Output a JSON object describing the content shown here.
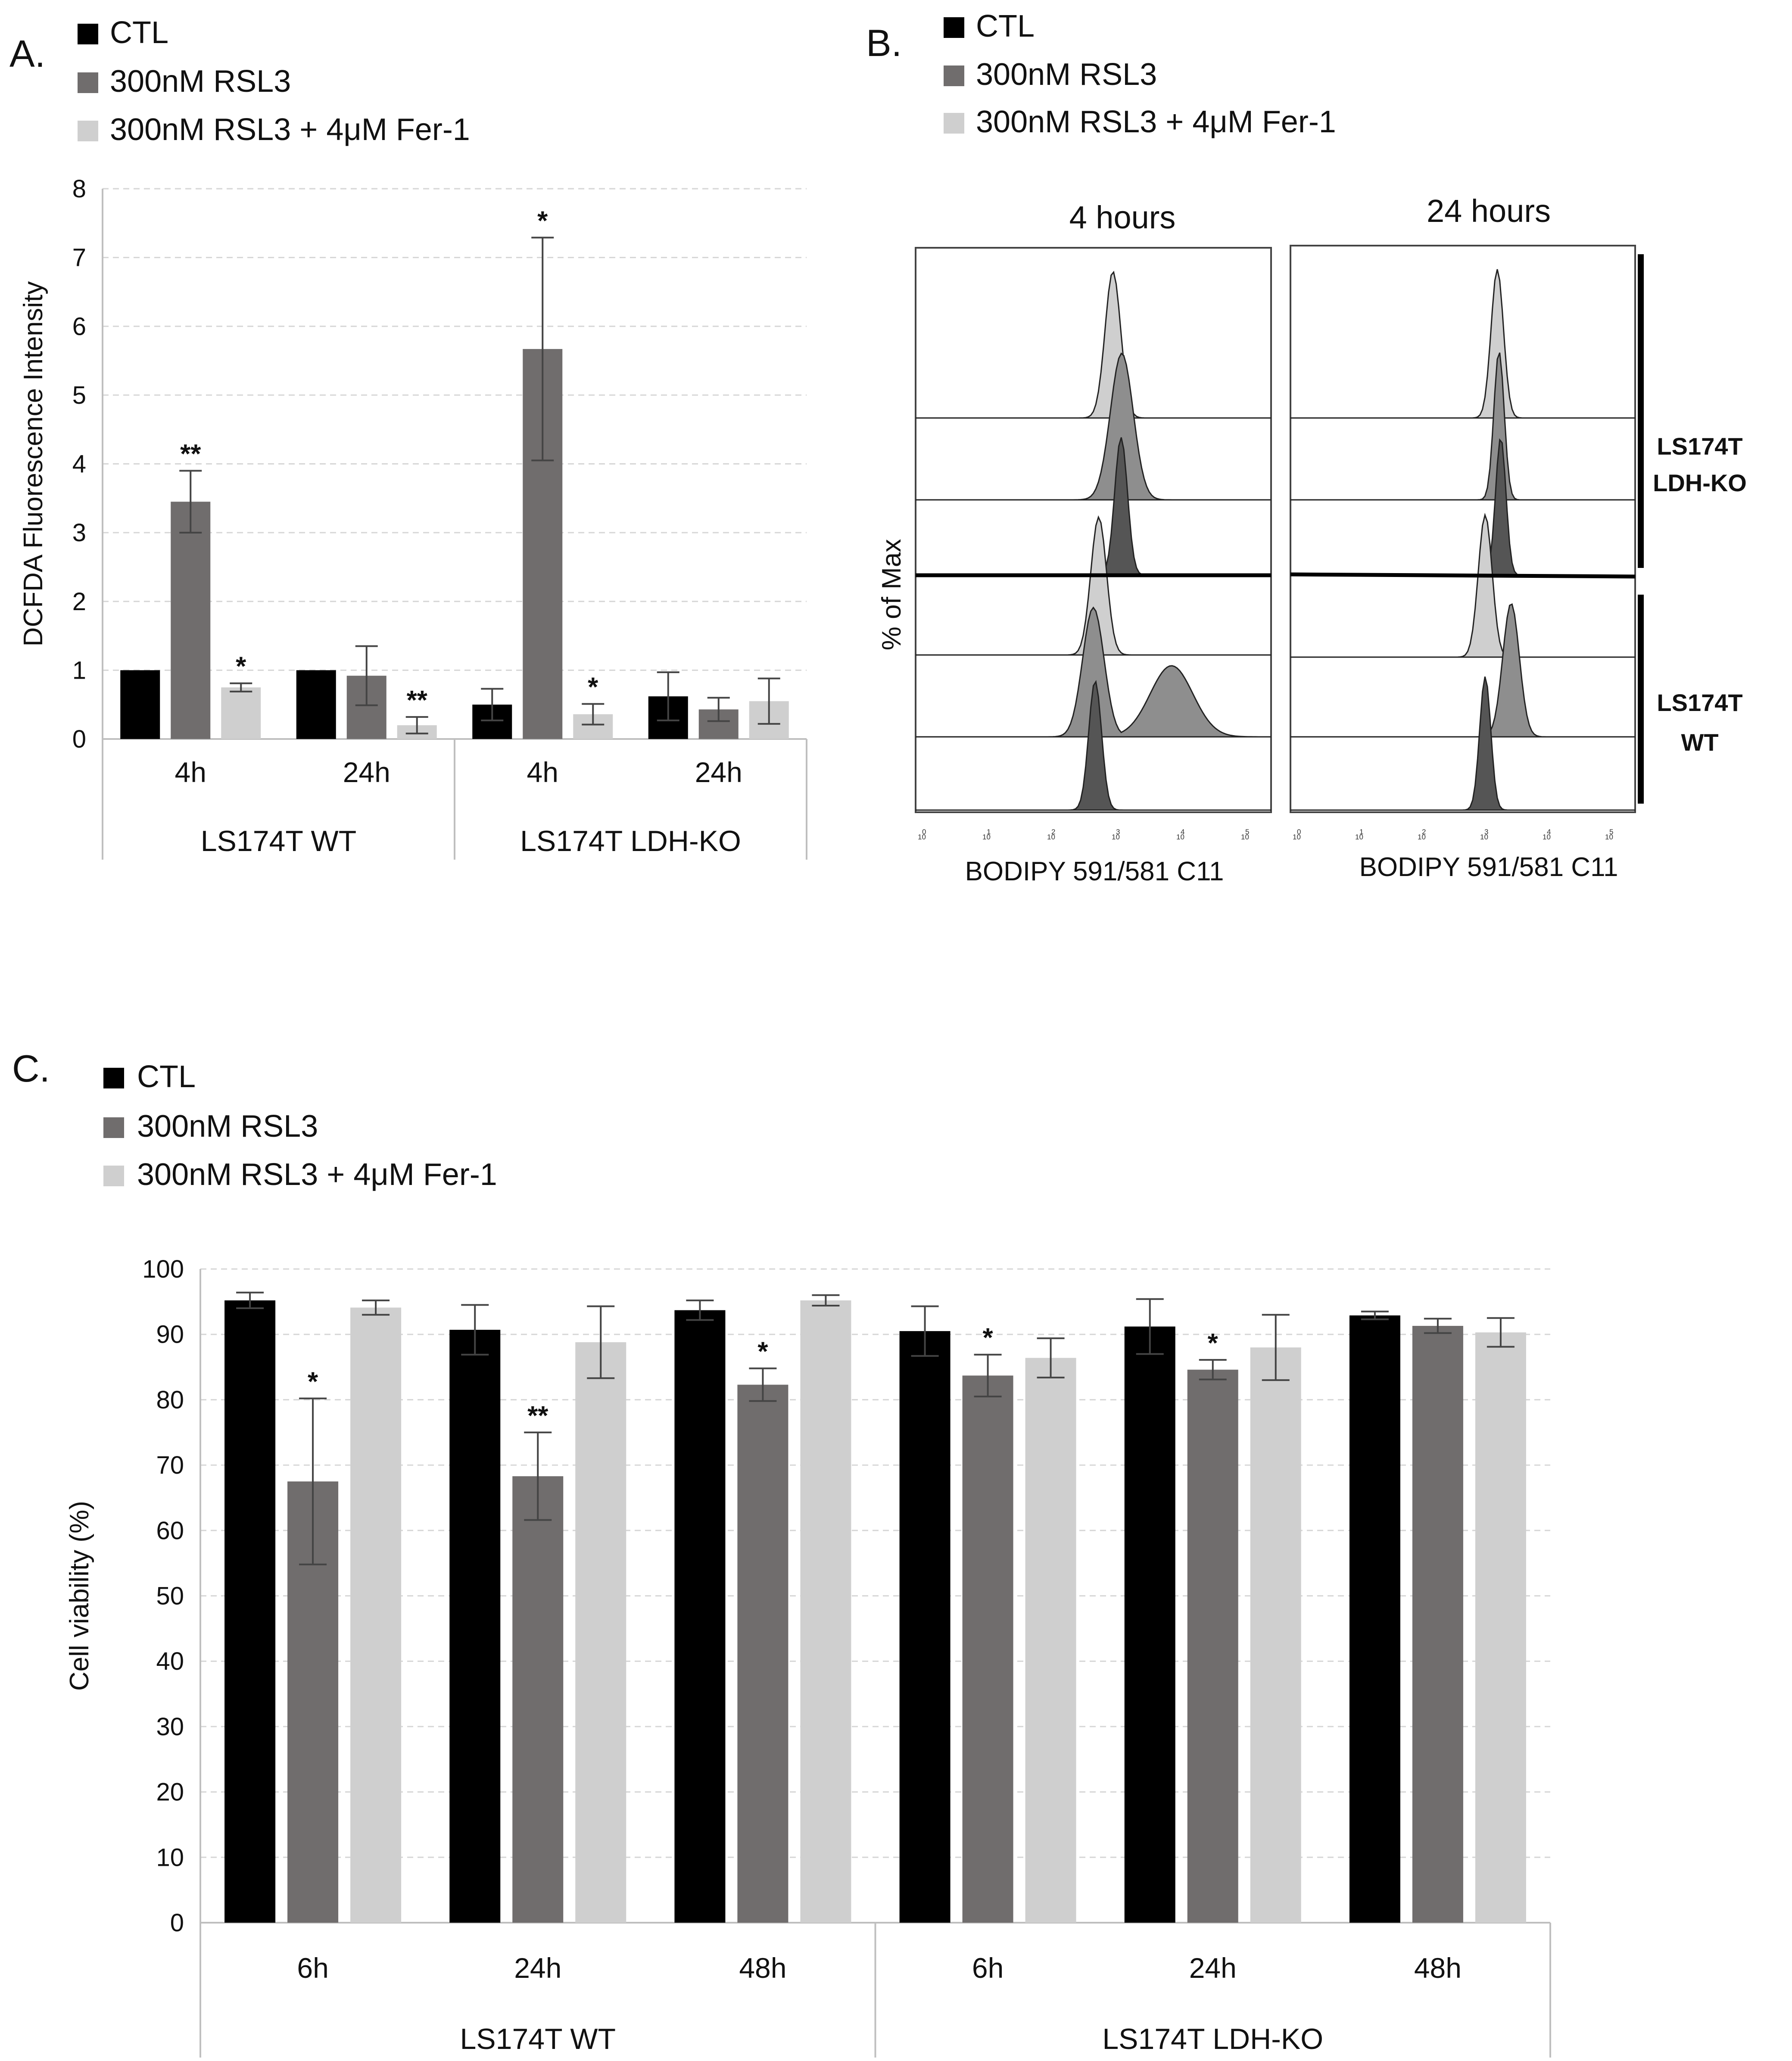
{
  "legend": {
    "entries": [
      {
        "label": "CTL",
        "color": "#000000"
      },
      {
        "label": "300nM RSL3",
        "color": "#706d6d"
      },
      {
        "label": "300nM RSL3 + 4μM Fer-1",
        "color": "#cfcfcf"
      }
    ]
  },
  "panels": {
    "a": {
      "letter": "A."
    },
    "b": {
      "letter": "B.",
      "titles": [
        "4 hours",
        "24 hours"
      ],
      "xlabel": "BODIPY 591/581 C11",
      "ylabel": "% of Max",
      "x_ticks": [
        "10",
        "0",
        "10",
        "1",
        "10",
        "2",
        "10",
        "3",
        "10",
        "4",
        "10",
        "5"
      ],
      "groups": [
        {
          "line1": "LS174T",
          "line2": "LDH-KO"
        },
        {
          "line1": "LS174T",
          "line2": "WT"
        }
      ]
    },
    "c": {
      "letter": "C."
    }
  },
  "chart_data": [
    {
      "type": "bar",
      "ylabel": "DCFDA Fluorescence Intensity",
      "ylim": [
        0,
        8
      ],
      "yticks": [
        0,
        1,
        2,
        3,
        4,
        5,
        6,
        7,
        8
      ],
      "grid": true,
      "legend": "top-left",
      "categories": [
        "4h",
        "24h",
        "4h",
        "24h"
      ],
      "groups": [
        {
          "label": "LS174T WT",
          "span": [
            0,
            1
          ]
        },
        {
          "label": "LS174T LDH-KO",
          "span": [
            2,
            3
          ]
        }
      ],
      "series": [
        {
          "name": "CTL",
          "values": [
            1.0,
            1.0,
            0.5,
            0.62
          ],
          "errors": [
            0,
            0,
            0.23,
            0.35
          ],
          "sig": [
            "",
            "",
            "",
            ""
          ]
        },
        {
          "name": "300nM RSL3",
          "values": [
            3.45,
            0.92,
            5.67,
            0.43
          ],
          "errors": [
            0.45,
            0.43,
            1.62,
            0.17
          ],
          "sig": [
            "**",
            "",
            "*",
            ""
          ]
        },
        {
          "name": "300nM RSL3 + 4μM Fer-1",
          "values": [
            0.75,
            0.2,
            0.36,
            0.55
          ],
          "errors": [
            0.06,
            0.12,
            0.15,
            0.33
          ],
          "sig": [
            "*",
            "**",
            "*",
            ""
          ]
        }
      ]
    },
    {
      "type": "bar",
      "ylabel": "Cell viability (%)",
      "ylim": [
        0,
        100
      ],
      "yticks": [
        0,
        10,
        20,
        30,
        40,
        50,
        60,
        70,
        80,
        90,
        100
      ],
      "grid": true,
      "legend": "top-left",
      "categories": [
        "6h",
        "24h",
        "48h",
        "6h",
        "24h",
        "48h"
      ],
      "groups": [
        {
          "label": "LS174T WT",
          "span": [
            0,
            2
          ]
        },
        {
          "label": "LS174T LDH-KO",
          "span": [
            3,
            5
          ]
        }
      ],
      "series": [
        {
          "name": "CTL",
          "values": [
            95.2,
            90.7,
            93.7,
            90.5,
            91.2,
            92.9
          ],
          "errors": [
            1.2,
            3.8,
            1.5,
            3.8,
            4.2,
            0.6
          ],
          "sig": [
            "",
            "",
            "",
            "",
            "",
            ""
          ]
        },
        {
          "name": "300nM RSL3",
          "values": [
            67.5,
            68.3,
            82.3,
            83.7,
            84.6,
            91.3
          ],
          "errors": [
            12.7,
            6.7,
            2.5,
            3.2,
            1.5,
            1.1
          ],
          "sig": [
            "*",
            "**",
            "*",
            "*",
            "*",
            ""
          ]
        },
        {
          "name": "300nM RSL3 + 4μM Fer-1",
          "values": [
            94.1,
            88.8,
            95.2,
            86.4,
            88.0,
            90.3
          ],
          "errors": [
            1.1,
            5.5,
            0.8,
            3.0,
            5.0,
            2.2
          ],
          "sig": [
            "",
            "",
            "",
            "",
            "",
            ""
          ]
        }
      ]
    }
  ]
}
